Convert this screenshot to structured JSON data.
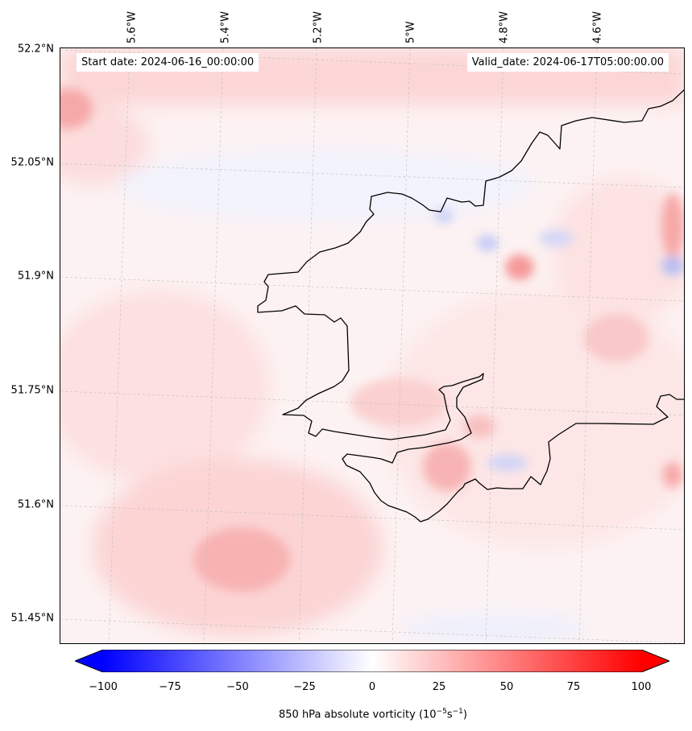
{
  "header": {
    "start_date": "Start date: 2024-06-16_00:00:00",
    "valid_date": "Valid_date: 2024-06-17T05:00:00.00"
  },
  "axes": {
    "lon_labels": [
      "5.6°W",
      "5.4°W",
      "5.2°W",
      "5°W",
      "4.8°W",
      "4.6°W"
    ],
    "lat_labels": [
      "52.2°N",
      "52.05°N",
      "51.9°N",
      "51.75°N",
      "51.6°N",
      "51.45°N"
    ]
  },
  "colorbar": {
    "min": -100,
    "max": 100,
    "ticks": [
      "−100",
      "−75",
      "−50",
      "−25",
      "0",
      "25",
      "50",
      "75",
      "100"
    ],
    "label_prefix": "850 hPa absolute vorticity (10",
    "label_exp1": "−5",
    "label_mid": "s",
    "label_exp2": "−1",
    "label_suffix": ")",
    "low_color": "#0000ff",
    "high_color": "#ff0000",
    "mid_color": "#ffffff"
  },
  "field": {
    "background_color": "#fdf4f4",
    "positive_color": "#ff0000",
    "negative_color": "#0000ff"
  }
}
